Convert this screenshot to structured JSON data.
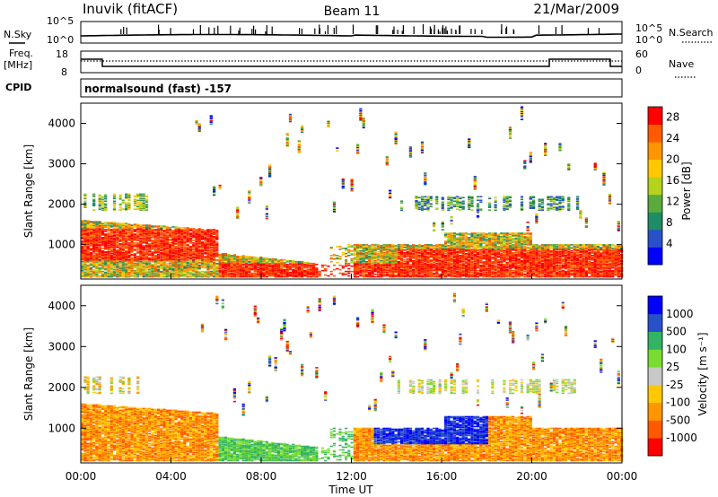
{
  "header": {
    "site": "Inuvik (fitACF)",
    "beam": "Beam 11",
    "date": "21/Mar/2009"
  },
  "panels": {
    "nsky": {
      "label": "N.Sky",
      "ticks": [
        "10^5",
        "10^0"
      ]
    },
    "nsearch": {
      "label": "N.Search",
      "ticks": [
        "10^5",
        "10^0"
      ]
    },
    "freq": {
      "label": "Freq.",
      "unit": "[MHz]",
      "ticks": [
        "18",
        "8"
      ]
    },
    "nave": {
      "label": "Nave",
      "ticks": [
        "60",
        "0"
      ]
    },
    "cpid": {
      "label": "CPID",
      "text": "normalsound (fast) -157"
    }
  },
  "colors": {
    "power": [
      "#0000ff",
      "#2850c8",
      "#1e8c64",
      "#5aaa3c",
      "#b4d21e",
      "#ffc800",
      "#ff9600",
      "#ff5a00",
      "#ff0000"
    ],
    "velocity": [
      "#ff0000",
      "#ff5a00",
      "#ff9600",
      "#ffc800",
      "#c8c8c8",
      "#78dc32",
      "#32b464",
      "#2850c8",
      "#0000ff"
    ]
  },
  "chart_data": [
    {
      "type": "heatmap",
      "ylabel": "Slant Range [km]",
      "yticks": [
        1000,
        2000,
        3000,
        4000
      ],
      "ylim": [
        150,
        4500
      ],
      "xlim": [
        0,
        24
      ],
      "colorbar": {
        "label": "Power [dB]",
        "ticks": [
          "28",
          "24",
          "20",
          "16",
          "12",
          "8",
          "4"
        ],
        "range": [
          0,
          30
        ]
      }
    },
    {
      "type": "heatmap",
      "ylabel": "Slant Range [km]",
      "yticks": [
        1000,
        2000,
        3000,
        4000
      ],
      "ylim": [
        150,
        4500
      ],
      "xlim": [
        0,
        24
      ],
      "xlabel": "Time UT",
      "xticks": [
        "00:00",
        "04:00",
        "08:00",
        "12:00",
        "16:00",
        "20:00",
        "00:00"
      ],
      "colorbar": {
        "label": "Velocity [m s⁻¹]",
        "ticks": [
          "1000",
          "500",
          "100",
          "25",
          "-25",
          "-100",
          "-500",
          "-1000"
        ]
      }
    }
  ]
}
